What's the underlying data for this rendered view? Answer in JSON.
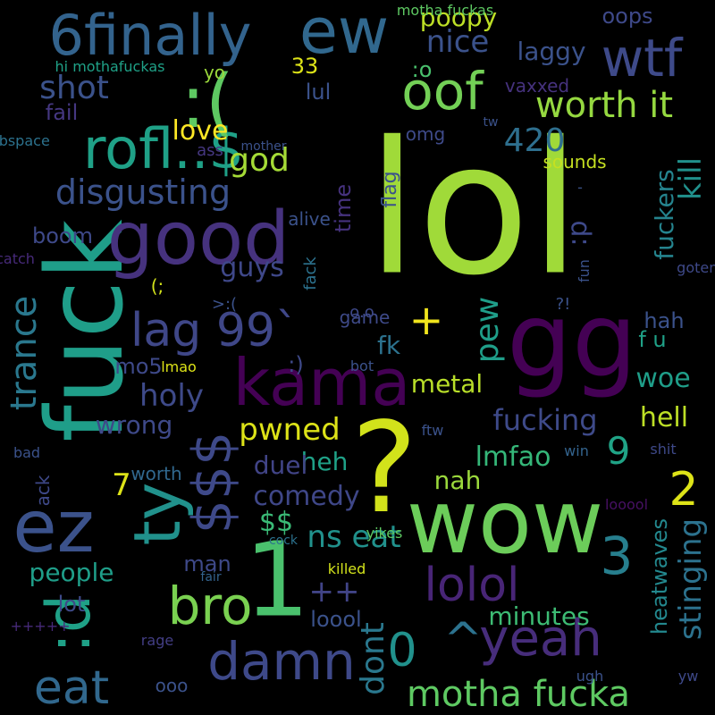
{
  "words": [
    {
      "text": "lol",
      "color": "#a0da39",
      "vertical": false
    },
    {
      "text": "gg",
      "color": "#440154",
      "vertical": false
    },
    {
      "text": "fuck",
      "color": "#1f9e89",
      "vertical": true
    },
    {
      "text": "wow",
      "color": "#6ccd5a",
      "vertical": false
    },
    {
      "text": "?",
      "color": "#d2e21b",
      "vertical": false
    },
    {
      "text": "ez",
      "color": "#3b528b",
      "vertical": false
    },
    {
      "text": "good",
      "color": "#46327e",
      "vertical": false
    },
    {
      "text": "ew",
      "color": "#31688e",
      "vertical": false
    },
    {
      "text": "1",
      "color": "#4ac16d",
      "vertical": false
    },
    {
      "text": "6finally",
      "color": "#33638d",
      "vertical": false
    },
    {
      "text": "rofl..$",
      "color": "#1fa187",
      "vertical": false
    },
    {
      "text": ":(",
      "color": "#5ec962",
      "vertical": false
    },
    {
      "text": "oof",
      "color": "#73d056",
      "vertical": false
    },
    {
      "text": "kama",
      "color": "#440154",
      "vertical": false
    },
    {
      "text": ":d",
      "color": "#1fa187",
      "vertical": true
    },
    {
      "text": "ty",
      "color": "#21918c",
      "vertical": true
    },
    {
      "text": "$$$",
      "color": "#3e4989",
      "vertical": true
    },
    {
      "text": "wtf",
      "color": "#3e4a89",
      "vertical": false
    },
    {
      "text": "bro",
      "color": "#7ad151",
      "vertical": false
    },
    {
      "text": "damn",
      "color": "#3e4989",
      "vertical": false
    },
    {
      "text": "eat",
      "color": "#31688e",
      "vertical": false
    },
    {
      "text": "lolol",
      "color": "#482576",
      "vertical": false
    },
    {
      "text": "yeah",
      "color": "#472d7b",
      "vertical": false
    },
    {
      "text": "3",
      "color": "#277f8e",
      "vertical": false
    },
    {
      "text": "0",
      "color": "#21918c",
      "vertical": false
    },
    {
      "text": "^",
      "color": "#2c728e",
      "vertical": false
    },
    {
      "text": "lag 99`",
      "color": "#3f4788",
      "vertical": false
    },
    {
      "text": "9",
      "color": "#20a386",
      "vertical": false
    },
    {
      "text": "2",
      "color": "#dde318",
      "vertical": false
    },
    {
      "text": "motha fucka",
      "color": "#5ec962",
      "vertical": false
    },
    {
      "text": "disgusting",
      "color": "#3b528b",
      "vertical": false
    },
    {
      "text": "worth it",
      "color": "#95d840",
      "vertical": false
    },
    {
      "text": "trance",
      "color": "#2a788e",
      "vertical": true
    },
    {
      "text": "stinging",
      "color": "#2c728e",
      "vertical": true
    },
    {
      "text": "heatwaves",
      "color": "#23888e",
      "vertical": true
    },
    {
      "text": "fucking",
      "color": "#3e4a89",
      "vertical": false
    },
    {
      "text": "nice",
      "color": "#3b528b",
      "vertical": false
    },
    {
      "text": "+",
      "color": "#f1e51d",
      "vertical": false
    },
    {
      "text": "++",
      "color": "#414487",
      "vertical": false
    },
    {
      "text": "holy",
      "color": "#3e4a89",
      "vertical": false
    },
    {
      "text": "god",
      "color": "#a5db36",
      "vertical": false
    },
    {
      "text": "420",
      "color": "#2e6f8e",
      "vertical": false
    },
    {
      "text": "guys",
      "color": "#3f4889",
      "vertical": false
    },
    {
      "text": "shot",
      "color": "#3b528b",
      "vertical": false
    },
    {
      "text": "comedy",
      "color": "#3f4788",
      "vertical": false
    },
    {
      "text": "pwned",
      "color": "#dde318",
      "vertical": false
    },
    {
      "text": "lmfao",
      "color": "#35b779",
      "vertical": false
    },
    {
      "text": "minutes",
      "color": "#3dbc74",
      "vertical": false
    },
    {
      "text": "metal",
      "color": "#b8de29",
      "vertical": false
    },
    {
      "text": "hell",
      "color": "#bddf26",
      "vertical": false
    },
    {
      "text": "love",
      "color": "#fde725",
      "vertical": false
    },
    {
      "text": "kill",
      "color": "#21918c",
      "vertical": true
    },
    {
      "text": "fuckers",
      "color": "#25848e",
      "vertical": true
    },
    {
      "text": "wrong",
      "color": "#3e4989",
      "vertical": false
    },
    {
      "text": "heh",
      "color": "#1fa187",
      "vertical": false
    },
    {
      "text": "fk",
      "color": "#2c728e",
      "vertical": false
    },
    {
      "text": "pew",
      "color": "#1f9e89",
      "vertical": true
    },
    {
      "text": "dont",
      "color": "#2a788e",
      "vertical": true
    },
    {
      "text": "ns eat",
      "color": "#21918c",
      "vertical": false
    },
    {
      "text": "7",
      "color": "#dde318",
      "vertical": false
    },
    {
      "text": "$$",
      "color": "#3aba76",
      "vertical": false
    },
    {
      "text": "f u",
      "color": "#1fa187",
      "vertical": false
    },
    {
      "text": "woe",
      "color": "#1f9e89",
      "vertical": false
    },
    {
      "text": "hah",
      "color": "#3b528b",
      "vertical": false
    },
    {
      "text": "boom",
      "color": "#3e4989",
      "vertical": false
    },
    {
      "text": "people",
      "color": "#1f9e89",
      "vertical": false
    },
    {
      "text": "lot",
      "color": "#3e4a89",
      "vertical": false
    },
    {
      "text": "loool",
      "color": "#3b528b",
      "vertical": false
    },
    {
      "text": "nah",
      "color": "#9bd93c",
      "vertical": false
    },
    {
      "text": "man",
      "color": "#3e4989",
      "vertical": false
    },
    {
      "text": "duel",
      "color": "#414487",
      "vertical": false
    },
    {
      "text": ":o",
      "color": "#4ac16d",
      "vertical": false
    },
    {
      "text": "sounds",
      "color": "#c5e021",
      "vertical": false
    },
    {
      "text": "poopy",
      "color": "#bddf26",
      "vertical": false
    },
    {
      "text": "oops",
      "color": "#3e4989",
      "vertical": false
    },
    {
      "text": "laggy",
      "color": "#3b528b",
      "vertical": false
    },
    {
      "text": "33",
      "color": "#dde318",
      "vertical": false
    },
    {
      "text": "yo",
      "color": "#9bd93c",
      "vertical": false
    },
    {
      "text": "lul",
      "color": "#3b528b",
      "vertical": false
    },
    {
      "text": "vaxxed",
      "color": "#46327e",
      "vertical": false
    },
    {
      "text": "fail",
      "color": "#453781",
      "vertical": false
    },
    {
      "text": "omg",
      "color": "#3e4a89",
      "vertical": false
    },
    {
      "text": "ass",
      "color": "#453781",
      "vertical": false
    },
    {
      "text": "alive",
      "color": "#3b528b",
      "vertical": false
    },
    {
      "text": "time",
      "color": "#46327e",
      "vertical": true
    },
    {
      "text": "flag",
      "color": "#3b528b",
      "vertical": true
    },
    {
      "text": ":p",
      "color": "#3e4989",
      "vertical": true
    },
    {
      "text": "(;",
      "color": "#d2e21b",
      "vertical": false
    },
    {
      "text": "game",
      "color": "#3e4a89",
      "vertical": false
    },
    {
      "text": "mo5",
      "color": "#3e4989",
      "vertical": false
    },
    {
      "text": ":)",
      "color": "#3e4989",
      "vertical": false
    },
    {
      "text": "worth",
      "color": "#31688e",
      "vertical": false
    },
    {
      "text": "ack",
      "color": "#3e4989",
      "vertical": true
    },
    {
      "text": "ooo",
      "color": "#3b528b",
      "vertical": false
    },
    {
      "text": "lmao",
      "color": "#dde318",
      "vertical": false
    },
    {
      "text": "bot",
      "color": "#3b528b",
      "vertical": false
    },
    {
      "text": "ftw",
      "color": "#3b528b",
      "vertical": false
    },
    {
      "text": "bad",
      "color": "#3b528b",
      "vertical": false
    },
    {
      "text": "win",
      "color": "#33638d",
      "vertical": false
    },
    {
      "text": "shit",
      "color": "#3e4989",
      "vertical": false
    },
    {
      "text": "looool",
      "color": "#471063",
      "vertical": false
    },
    {
      "text": "yikes",
      "color": "#5ec962",
      "vertical": false
    },
    {
      "text": "killed",
      "color": "#d2e21b",
      "vertical": false
    },
    {
      "text": "fair",
      "color": "#33638d",
      "vertical": false
    },
    {
      "text": "cock",
      "color": "#2c728e",
      "vertical": false
    },
    {
      "text": "rage",
      "color": "#433e85",
      "vertical": false
    },
    {
      "text": "+++++",
      "color": "#472a7a",
      "vertical": false
    },
    {
      "text": "ugh",
      "color": "#3b528b",
      "vertical": false
    },
    {
      "text": "yw",
      "color": "#3e4989",
      "vertical": false
    },
    {
      "text": ">:(",
      "color": "#3b528b",
      "vertical": false
    },
    {
      "text": "?!",
      "color": "#3b528b",
      "vertical": false
    },
    {
      "text": "motha fuckas",
      "color": "#5ec962",
      "vertical": false
    },
    {
      "text": "hi mothafuckas",
      "color": "#1fa187",
      "vertical": false
    },
    {
      "text": "subspace",
      "color": "#2c728e",
      "vertical": false
    },
    {
      "text": "mother",
      "color": "#3b528b",
      "vertical": false
    },
    {
      "text": "tw",
      "color": "#3b528b",
      "vertical": false
    },
    {
      "text": "-",
      "color": "#3b528b",
      "vertical": false
    },
    {
      "text": "fun",
      "color": "#3b528b",
      "vertical": true
    },
    {
      "text": "gotem",
      "color": "#3e4989",
      "vertical": false
    },
    {
      "text": "catch",
      "color": "#472a7a",
      "vertical": false
    },
    {
      "text": "fack",
      "color": "#2c728e",
      "vertical": true
    },
    {
      "text": "o.o",
      "color": "#3e4989",
      "vertical": false
    },
    {
      "text": "\\",
      "color": "#3b528b",
      "vertical": false
    },
    {
      "text": "5",
      "color": "#46327e",
      "vertical": false
    }
  ]
}
